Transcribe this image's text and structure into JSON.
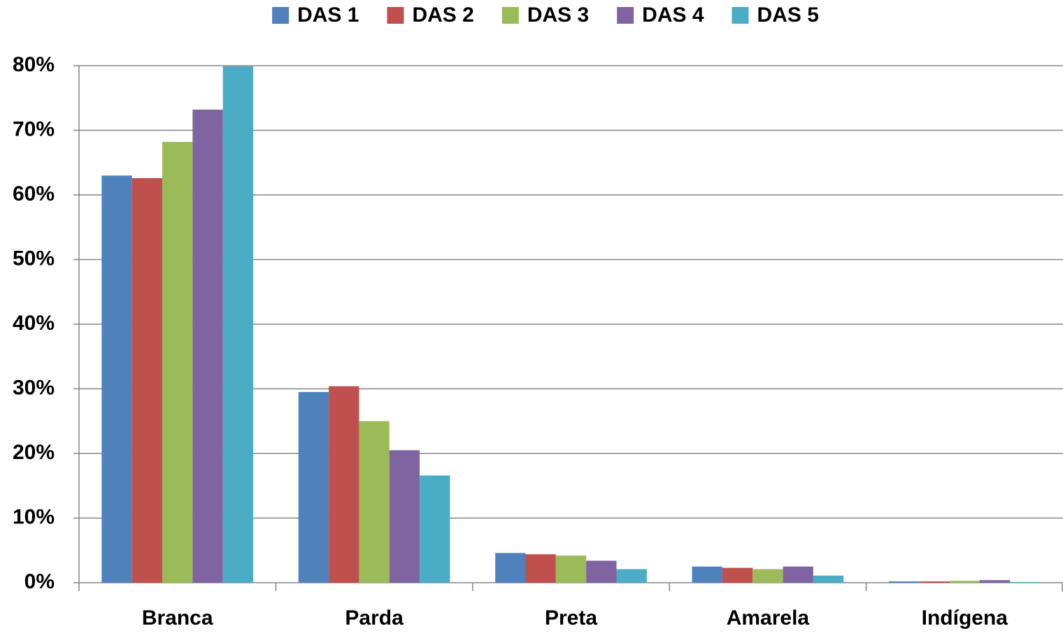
{
  "chart_data": {
    "type": "bar",
    "categories": [
      "Branca",
      "Parda",
      "Preta",
      "Amarela",
      "Indígena"
    ],
    "series": [
      {
        "name": "DAS 1",
        "color": "#4f81bd",
        "values": [
          63.0,
          29.5,
          4.6,
          2.5,
          0.2
        ]
      },
      {
        "name": "DAS 2",
        "color": "#c0504d",
        "values": [
          62.6,
          30.4,
          4.4,
          2.3,
          0.2
        ]
      },
      {
        "name": "DAS 3",
        "color": "#9bbb59",
        "values": [
          68.2,
          25.0,
          4.2,
          2.1,
          0.3
        ]
      },
      {
        "name": "DAS 4",
        "color": "#8064a2",
        "values": [
          73.2,
          20.5,
          3.4,
          2.5,
          0.4
        ]
      },
      {
        "name": "DAS 5",
        "color": "#4bacc6",
        "values": [
          79.9,
          16.6,
          2.1,
          1.1,
          0.1
        ]
      }
    ],
    "ylim": [
      0,
      80
    ],
    "yticks": [
      {
        "value": 0,
        "label": "0%"
      },
      {
        "value": 10,
        "label": "10%"
      },
      {
        "value": 20,
        "label": "20%"
      },
      {
        "value": 30,
        "label": "30%"
      },
      {
        "value": 40,
        "label": "40%"
      },
      {
        "value": 50,
        "label": "50%"
      },
      {
        "value": 60,
        "label": "60%"
      },
      {
        "value": 70,
        "label": "70%"
      },
      {
        "value": 80,
        "label": "80%"
      }
    ],
    "grid": true,
    "legend": "top"
  }
}
